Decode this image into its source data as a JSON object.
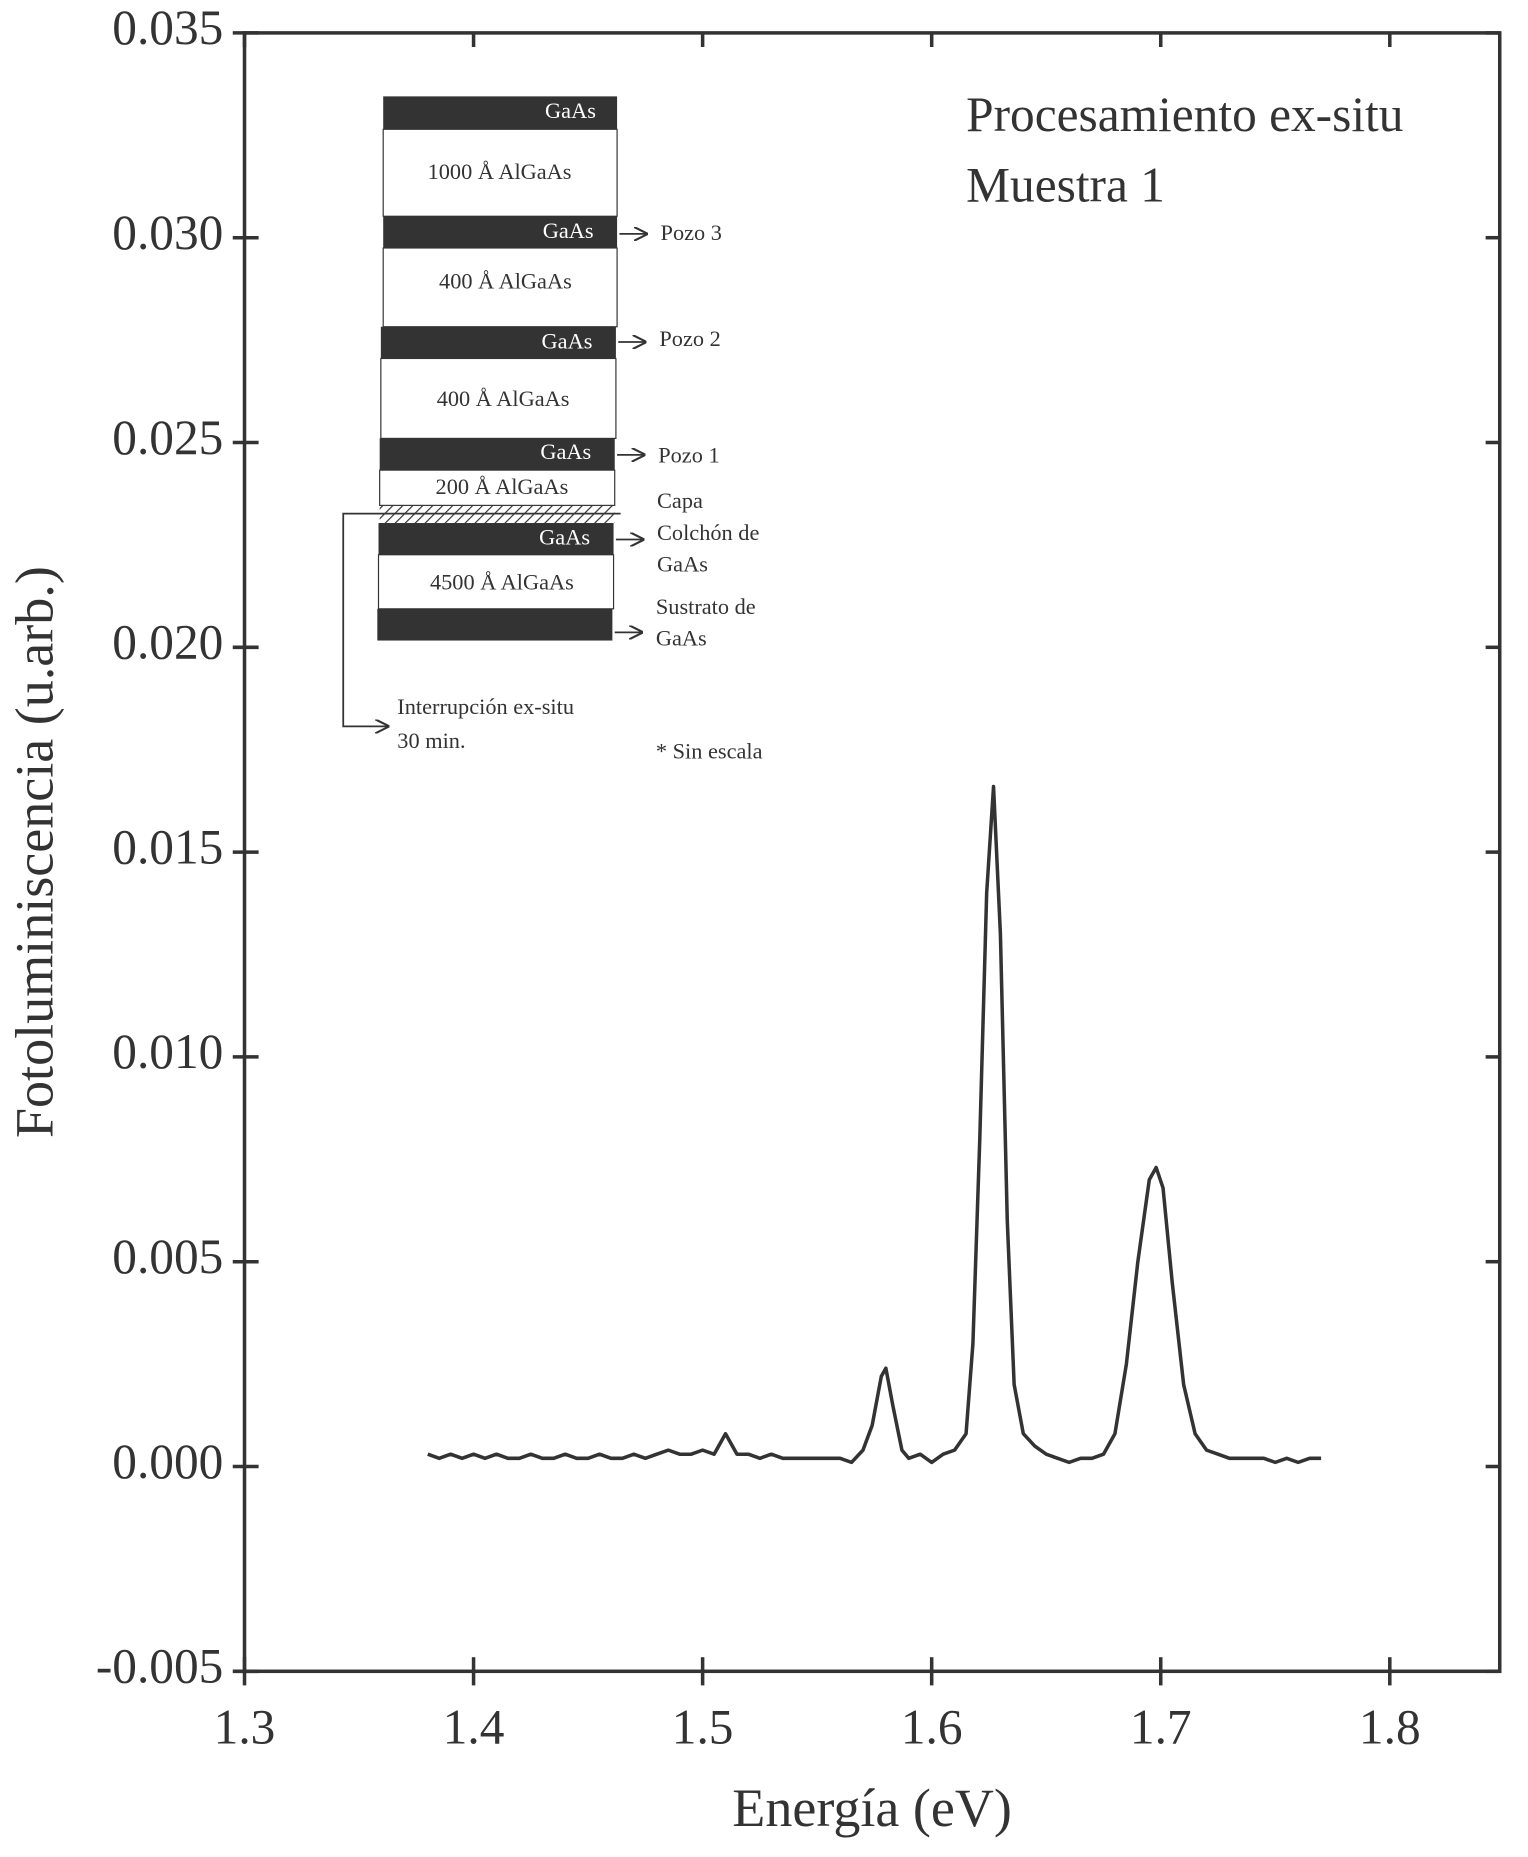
{
  "chart_data": {
    "type": "line",
    "x_label": "Energía (eV)",
    "y_label": "Fotoluminiscencia (u.arb.)",
    "annotations": [
      "Procesamiento ex-situ",
      "Muestra 1"
    ],
    "inset": {
      "layers": [
        "GaAs",
        "1000 Å AlGaAs",
        "GaAs",
        "400 Å AlGaAs",
        "GaAs",
        "400 Å AlGaAs",
        "GaAs",
        "200 Å AlGaAs",
        "GaAs",
        "4500 Å AlGaAs"
      ],
      "side_labels": [
        "Pozo 3",
        "Pozo 2",
        "Pozo 1",
        "Capa",
        "Colchón de",
        "GaAs",
        "Sustrato de",
        "GaAs"
      ],
      "interruption": [
        "Interrupción ex-situ",
        "30 min."
      ],
      "note": "* Sin escala"
    },
    "color": "#333333",
    "x": [
      1.38,
      1.385,
      1.39,
      1.395,
      1.4,
      1.405,
      1.41,
      1.415,
      1.42,
      1.425,
      1.43,
      1.435,
      1.44,
      1.445,
      1.45,
      1.455,
      1.46,
      1.465,
      1.47,
      1.475,
      1.48,
      1.485,
      1.49,
      1.495,
      1.5,
      1.505,
      1.51,
      1.515,
      1.52,
      1.525,
      1.53,
      1.535,
      1.54,
      1.545,
      1.55,
      1.555,
      1.56,
      1.565,
      1.57,
      1.574,
      1.578,
      1.58,
      1.583,
      1.587,
      1.59,
      1.595,
      1.6,
      1.605,
      1.61,
      1.615,
      1.618,
      1.621,
      1.624,
      1.627,
      1.63,
      1.633,
      1.636,
      1.64,
      1.645,
      1.65,
      1.655,
      1.66,
      1.665,
      1.67,
      1.675,
      1.68,
      1.685,
      1.69,
      1.695,
      1.698,
      1.701,
      1.705,
      1.71,
      1.715,
      1.72,
      1.725,
      1.73,
      1.735,
      1.74,
      1.745,
      1.75,
      1.755,
      1.76,
      1.765,
      1.77
    ],
    "values": [
      0.0003,
      0.0002,
      0.0003,
      0.0002,
      0.0003,
      0.0002,
      0.0003,
      0.0002,
      0.0002,
      0.0003,
      0.0002,
      0.0002,
      0.0003,
      0.0002,
      0.0002,
      0.0003,
      0.0002,
      0.0002,
      0.0003,
      0.0002,
      0.0003,
      0.0004,
      0.0003,
      0.0003,
      0.0004,
      0.0003,
      0.0008,
      0.0003,
      0.0003,
      0.0002,
      0.0003,
      0.0002,
      0.0002,
      0.0002,
      0.0002,
      0.0002,
      0.0002,
      0.0001,
      0.0004,
      0.001,
      0.0022,
      0.0024,
      0.0015,
      0.0004,
      0.0002,
      0.0003,
      0.0001,
      0.0003,
      0.0004,
      0.0008,
      0.003,
      0.008,
      0.014,
      0.0166,
      0.013,
      0.006,
      0.002,
      0.0008,
      0.0005,
      0.0003,
      0.0002,
      0.0001,
      0.0002,
      0.0002,
      0.0003,
      0.0008,
      0.0025,
      0.005,
      0.007,
      0.0073,
      0.0068,
      0.0045,
      0.002,
      0.0008,
      0.0004,
      0.0003,
      0.0002,
      0.0002,
      0.0002,
      0.0002,
      0.0001,
      0.0002,
      0.0001,
      0.0002,
      0.0002
    ],
    "xlim": [
      1.3,
      1.848
    ],
    "ylim": [
      -0.005,
      0.035
    ],
    "xticks": [
      1.3,
      1.4,
      1.5,
      1.6,
      1.7,
      1.8
    ],
    "yticks": [
      0.035,
      {
        "value": 0.03,
        "label": "0.030"
      },
      0.025,
      {
        "value": 0.02,
        "label": "0.020"
      },
      0.015,
      {
        "value": 0.01,
        "label": "0.010"
      },
      0.005,
      {
        "value": 0,
        "label": "0.000"
      },
      -0.005
    ]
  }
}
